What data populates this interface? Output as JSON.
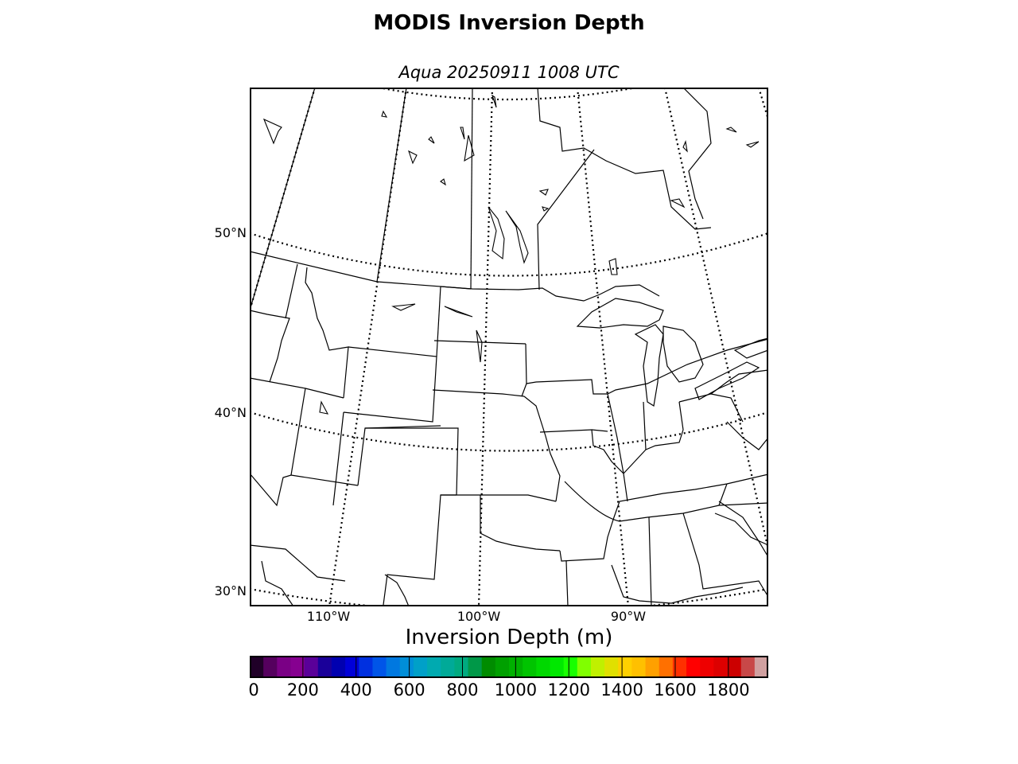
{
  "title": "MODIS Inversion Depth",
  "subtitle": "Aqua 20250911 1008 UTC",
  "map": {
    "lat_labels": [
      "50°N",
      "40°N",
      "30°N"
    ],
    "lon_labels": [
      "110°W",
      "100°W",
      "90°W"
    ],
    "region": "North-central United States and south-central Canada",
    "projection": "Lambert conformal",
    "graticule_style": "dotted",
    "data_overlay": "none visible"
  },
  "colorbar": {
    "label": "Inversion Depth (m)",
    "tick_labels": [
      "0",
      "200",
      "400",
      "600",
      "800",
      "1000",
      "1200",
      "1400",
      "1600",
      "1800"
    ],
    "range": [
      0,
      1950
    ],
    "colors": [
      "#200028",
      "#55005e",
      "#7a0085",
      "#860090",
      "#5a0099",
      "#1a0099",
      "#0000b0",
      "#0000d8",
      "#0030e0",
      "#0055e8",
      "#0078e0",
      "#008ed8",
      "#00a0c8",
      "#00aab0",
      "#00aa98",
      "#00aa80",
      "#009848",
      "#008c00",
      "#00a000",
      "#00b000",
      "#00c400",
      "#00d800",
      "#00e800",
      "#18ff00",
      "#80ff00",
      "#c0f000",
      "#e0e000",
      "#ffd000",
      "#ffc000",
      "#ffa000",
      "#ff7000",
      "#ff3000",
      "#ff0000",
      "#ee0000",
      "#dd0000",
      "#cc0000",
      "#c84848",
      "#d0a0a0"
    ]
  }
}
